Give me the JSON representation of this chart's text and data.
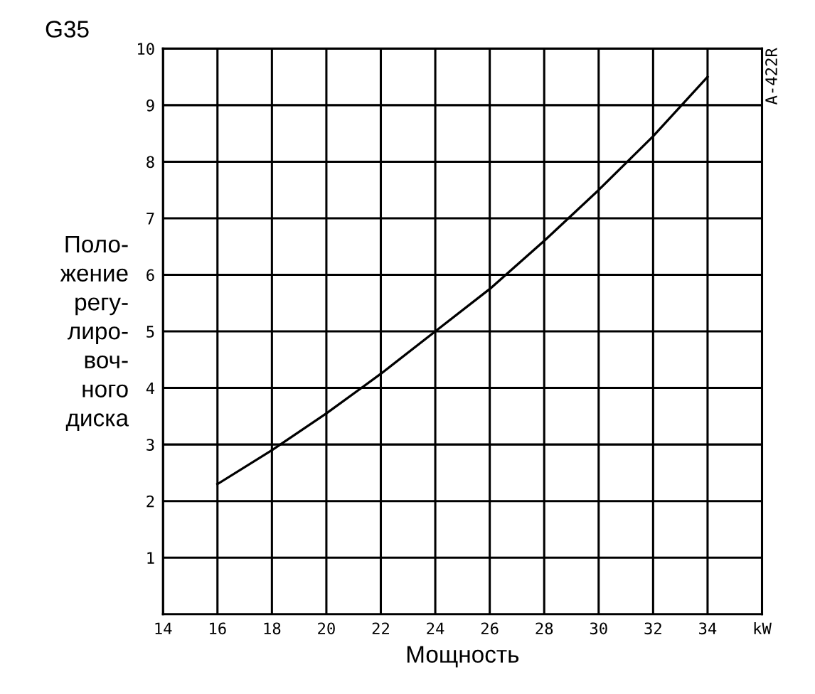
{
  "chart_data": {
    "type": "line",
    "title": "G35",
    "xlabel": "Мощность",
    "ylabel": "Поло-\nжение\nрегу-\nлиро-\nвоч-\nного\nдиска",
    "annotations": [
      "A-422R"
    ],
    "x": [
      16,
      18,
      20,
      22,
      24,
      26,
      28,
      30,
      32,
      34
    ],
    "series": [
      {
        "color": "#000000",
        "values": [
          2.3,
          2.9,
          3.55,
          4.25,
          5.0,
          5.75,
          6.6,
          7.5,
          8.45,
          9.5
        ]
      }
    ],
    "xlim": [
      14,
      36
    ],
    "xticks": [
      14,
      16,
      18,
      20,
      22,
      24,
      26,
      28,
      30,
      32,
      34,
      {
        "value": 36,
        "label": "kW"
      }
    ],
    "ylim": [
      0,
      10
    ],
    "yticks": [
      1,
      2,
      3,
      4,
      5,
      6,
      7,
      8,
      9,
      10
    ],
    "grid": true,
    "marker": "none",
    "line_style": "solid"
  }
}
